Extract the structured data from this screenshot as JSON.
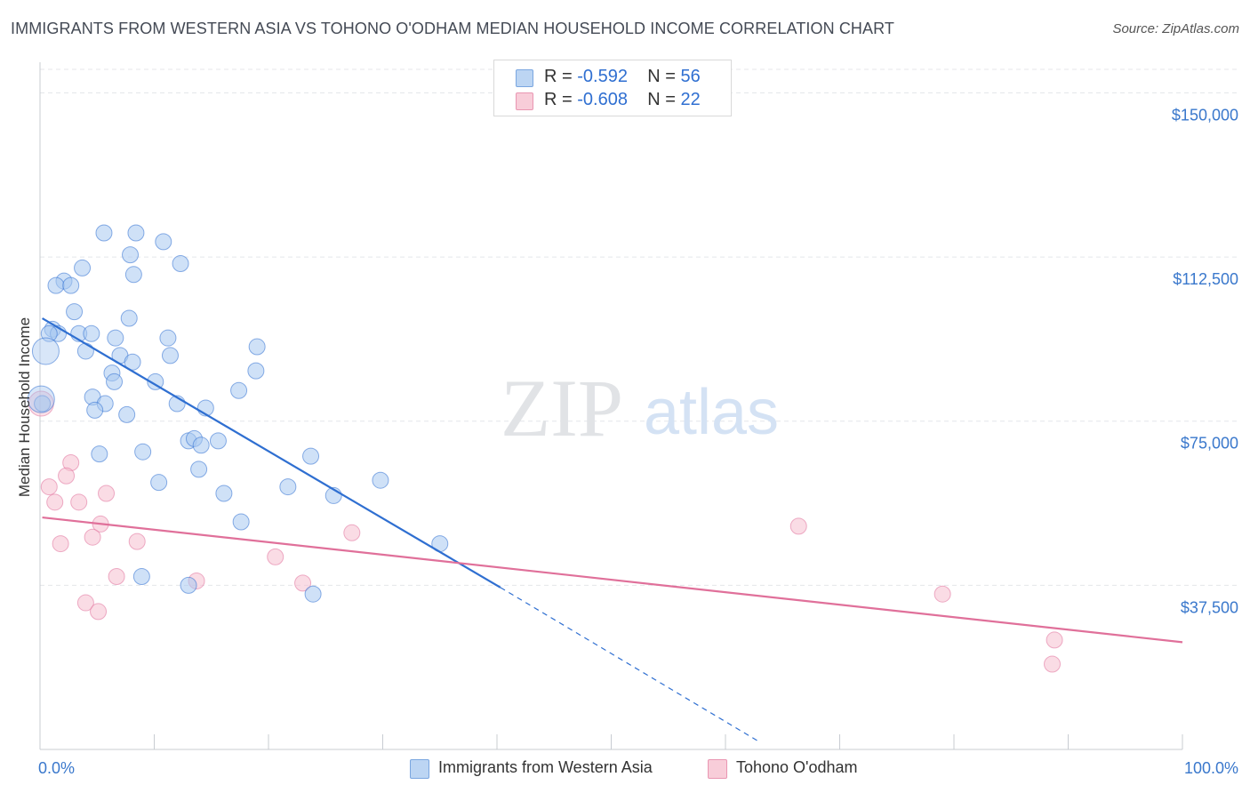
{
  "title": "IMMIGRANTS FROM WESTERN ASIA VS TOHONO O'ODHAM MEDIAN HOUSEHOLD INCOME CORRELATION CHART",
  "source": "Source: ZipAtlas.com",
  "watermark": {
    "zip": "ZIP",
    "atlas": "atlas"
  },
  "colors": {
    "blue": "#2f6fd1",
    "blue_fill": "#a8c8f0",
    "pink": "#e0709a",
    "pink_fill": "#f6c0d0",
    "grid": "#e4e6ea",
    "axis_label": "#3a78cc"
  },
  "legend": {
    "rows": [
      {
        "r_label": "R = ",
        "r_value": "-0.592",
        "n_label": "N = ",
        "n_value": "56"
      },
      {
        "r_label": "R = ",
        "r_value": "-0.608",
        "n_label": "N = ",
        "n_value": "22"
      }
    ]
  },
  "chart_data": {
    "type": "scatter",
    "xlabel": "",
    "ylabel": "Median Household Income",
    "xlim": [
      0,
      100
    ],
    "ylim": [
      0,
      157000
    ],
    "x_tick_labels": [
      "0.0%",
      "100.0%"
    ],
    "y_ticks": [
      37500,
      75000,
      112500,
      150000
    ],
    "y_tick_labels": [
      "$37,500",
      "$75,000",
      "$112,500",
      "$150,000"
    ],
    "series": [
      {
        "name": "Immigrants from Western Asia",
        "color": "blue",
        "r": -0.592,
        "n": 56,
        "trend": {
          "x0": 0.2,
          "y0": 98500,
          "x1": 40.3,
          "y1": 37000,
          "dash_to_x": 62.8,
          "dash_to_y": 2000
        },
        "points": [
          [
            5.6,
            118000
          ],
          [
            8.4,
            118000
          ],
          [
            7.9,
            113000
          ],
          [
            10.8,
            116000
          ],
          [
            8.2,
            108500
          ],
          [
            3.7,
            110000
          ],
          [
            2.1,
            107000
          ],
          [
            1.4,
            106000
          ],
          [
            2.7,
            106000
          ],
          [
            12.3,
            111000
          ],
          [
            3.0,
            100000
          ],
          [
            7.8,
            98500
          ],
          [
            1.1,
            96000
          ],
          [
            1.6,
            95000
          ],
          [
            0.8,
            95000
          ],
          [
            3.4,
            95000
          ],
          [
            4.5,
            95000
          ],
          [
            6.6,
            94000
          ],
          [
            11.2,
            94000
          ],
          [
            0.5,
            91000
          ],
          [
            4.0,
            91000
          ],
          [
            7.0,
            90000
          ],
          [
            11.4,
            90000
          ],
          [
            8.1,
            88500
          ],
          [
            19.0,
            92000
          ],
          [
            6.3,
            86000
          ],
          [
            6.5,
            84000
          ],
          [
            10.1,
            84000
          ],
          [
            18.9,
            86500
          ],
          [
            17.4,
            82000
          ],
          [
            0.2,
            79000
          ],
          [
            4.6,
            80500
          ],
          [
            5.7,
            79000
          ],
          [
            12.0,
            79000
          ],
          [
            14.5,
            78000
          ],
          [
            4.8,
            77500
          ],
          [
            7.6,
            76500
          ],
          [
            13.0,
            70500
          ],
          [
            13.5,
            71000
          ],
          [
            15.6,
            70500
          ],
          [
            14.1,
            69500
          ],
          [
            5.2,
            67500
          ],
          [
            9.0,
            68000
          ],
          [
            23.7,
            67000
          ],
          [
            13.9,
            64000
          ],
          [
            10.4,
            61000
          ],
          [
            29.8,
            61500
          ],
          [
            16.1,
            58500
          ],
          [
            21.7,
            60000
          ],
          [
            25.7,
            58000
          ],
          [
            17.6,
            52000
          ],
          [
            35.0,
            47000
          ],
          [
            8.9,
            39500
          ],
          [
            13.0,
            37500
          ],
          [
            23.9,
            35500
          ],
          [
            0.1,
            80000
          ]
        ]
      },
      {
        "name": "Tohono O'odham",
        "color": "pink",
        "r": -0.608,
        "n": 22,
        "trend": {
          "x0": 0.2,
          "y0": 53000,
          "x1": 100,
          "y1": 24500
        },
        "points": [
          [
            0.1,
            79000
          ],
          [
            2.7,
            65500
          ],
          [
            2.3,
            62500
          ],
          [
            0.8,
            60000
          ],
          [
            5.8,
            58500
          ],
          [
            1.3,
            56500
          ],
          [
            3.4,
            56500
          ],
          [
            5.3,
            51500
          ],
          [
            4.6,
            48500
          ],
          [
            1.8,
            47000
          ],
          [
            8.5,
            47500
          ],
          [
            27.3,
            49500
          ],
          [
            66.4,
            51000
          ],
          [
            20.6,
            44000
          ],
          [
            6.7,
            39500
          ],
          [
            13.7,
            38500
          ],
          [
            23.0,
            38000
          ],
          [
            4.0,
            33500
          ],
          [
            5.1,
            31500
          ],
          [
            79.0,
            35500
          ],
          [
            88.8,
            25000
          ],
          [
            88.6,
            19500
          ]
        ]
      }
    ]
  }
}
